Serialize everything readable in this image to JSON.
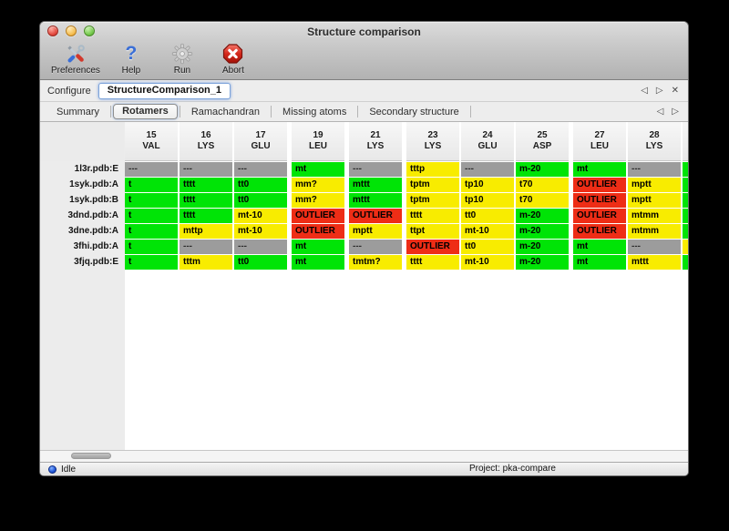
{
  "window_title": "Structure comparison",
  "traffic_lights": {
    "close": "close-button",
    "minimize": "minimize-button",
    "zoom": "zoom-button"
  },
  "toolbar": {
    "items": [
      {
        "label": "Preferences",
        "icon": "tools-icon"
      },
      {
        "label": "Help",
        "icon": "help-icon"
      },
      {
        "label": "Run",
        "icon": "gear-icon"
      },
      {
        "label": "Abort",
        "icon": "abort-icon"
      }
    ]
  },
  "configure": {
    "label": "Configure",
    "value": "StructureComparison_1",
    "nav": [
      "◁",
      "▷",
      "✕"
    ]
  },
  "tabs": {
    "items": [
      "Summary",
      "Rotamers",
      "Ramachandran",
      "Missing atoms",
      "Secondary structure"
    ],
    "selected": "Rotamers",
    "nav": [
      "◁",
      "▷"
    ]
  },
  "colors": {
    "ok": "#00e406",
    "warn": "#f8ec00",
    "outlier": "#ee2d16",
    "absent": "#9c9c9c"
  },
  "table": {
    "columns": [
      {
        "num": "15",
        "res": "VAL",
        "gap_after": false
      },
      {
        "num": "16",
        "res": "LYS",
        "gap_after": false
      },
      {
        "num": "17",
        "res": "GLU",
        "gap_after": true
      },
      {
        "num": "19",
        "res": "LEU",
        "gap_after": true
      },
      {
        "num": "21",
        "res": "LYS",
        "gap_after": true
      },
      {
        "num": "23",
        "res": "LYS",
        "gap_after": false
      },
      {
        "num": "24",
        "res": "GLU",
        "gap_after": false
      },
      {
        "num": "25",
        "res": "ASP",
        "gap_after": true
      },
      {
        "num": "27",
        "res": "LEU",
        "gap_after": false
      },
      {
        "num": "28",
        "res": "LYS",
        "gap_after": false
      }
    ],
    "rows": [
      {
        "label": "1l3r.pdb:E",
        "tail": "ok",
        "cells": [
          {
            "text": "---",
            "status": "absent"
          },
          {
            "text": "---",
            "status": "absent"
          },
          {
            "text": "---",
            "status": "absent"
          },
          {
            "text": "mt",
            "status": "ok"
          },
          {
            "text": "---",
            "status": "absent"
          },
          {
            "text": "tttp",
            "status": "warn"
          },
          {
            "text": "---",
            "status": "absent"
          },
          {
            "text": "m-20",
            "status": "ok"
          },
          {
            "text": "mt",
            "status": "ok"
          },
          {
            "text": "---",
            "status": "absent"
          }
        ]
      },
      {
        "label": "1syk.pdb:A",
        "tail": "ok",
        "cells": [
          {
            "text": "t",
            "status": "ok"
          },
          {
            "text": "tttt",
            "status": "ok"
          },
          {
            "text": "tt0",
            "status": "ok"
          },
          {
            "text": "mm?",
            "status": "warn"
          },
          {
            "text": "mttt",
            "status": "ok"
          },
          {
            "text": "tptm",
            "status": "warn"
          },
          {
            "text": "tp10",
            "status": "warn"
          },
          {
            "text": "t70",
            "status": "warn"
          },
          {
            "text": "OUTLIER",
            "status": "outlier"
          },
          {
            "text": "mptt",
            "status": "warn"
          }
        ]
      },
      {
        "label": "1syk.pdb:B",
        "tail": "ok",
        "cells": [
          {
            "text": "t",
            "status": "ok"
          },
          {
            "text": "tttt",
            "status": "ok"
          },
          {
            "text": "tt0",
            "status": "ok"
          },
          {
            "text": "mm?",
            "status": "warn"
          },
          {
            "text": "mttt",
            "status": "ok"
          },
          {
            "text": "tptm",
            "status": "warn"
          },
          {
            "text": "tp10",
            "status": "warn"
          },
          {
            "text": "t70",
            "status": "warn"
          },
          {
            "text": "OUTLIER",
            "status": "outlier"
          },
          {
            "text": "mptt",
            "status": "warn"
          }
        ]
      },
      {
        "label": "3dnd.pdb:A",
        "tail": "ok",
        "cells": [
          {
            "text": "t",
            "status": "ok"
          },
          {
            "text": "tttt",
            "status": "ok"
          },
          {
            "text": "mt-10",
            "status": "warn"
          },
          {
            "text": "OUTLIER",
            "status": "outlier"
          },
          {
            "text": "OUTLIER",
            "status": "outlier"
          },
          {
            "text": "tttt",
            "status": "warn"
          },
          {
            "text": "tt0",
            "status": "warn"
          },
          {
            "text": "m-20",
            "status": "ok"
          },
          {
            "text": "OUTLIER",
            "status": "outlier"
          },
          {
            "text": "mtmm",
            "status": "warn"
          }
        ]
      },
      {
        "label": "3dne.pdb:A",
        "tail": "ok",
        "cells": [
          {
            "text": "t",
            "status": "ok"
          },
          {
            "text": "mttp",
            "status": "warn"
          },
          {
            "text": "mt-10",
            "status": "warn"
          },
          {
            "text": "OUTLIER",
            "status": "outlier"
          },
          {
            "text": "mptt",
            "status": "warn"
          },
          {
            "text": "ttpt",
            "status": "warn"
          },
          {
            "text": "mt-10",
            "status": "warn"
          },
          {
            "text": "m-20",
            "status": "ok"
          },
          {
            "text": "OUTLIER",
            "status": "outlier"
          },
          {
            "text": "mtmm",
            "status": "warn"
          }
        ]
      },
      {
        "label": "3fhi.pdb:A",
        "tail": "warn",
        "cells": [
          {
            "text": "t",
            "status": "ok"
          },
          {
            "text": "---",
            "status": "absent"
          },
          {
            "text": "---",
            "status": "absent"
          },
          {
            "text": "mt",
            "status": "ok"
          },
          {
            "text": "---",
            "status": "absent"
          },
          {
            "text": "OUTLIER",
            "status": "outlier"
          },
          {
            "text": "tt0",
            "status": "warn"
          },
          {
            "text": "m-20",
            "status": "ok"
          },
          {
            "text": "mt",
            "status": "ok"
          },
          {
            "text": "---",
            "status": "absent"
          }
        ]
      },
      {
        "label": "3fjq.pdb:E",
        "tail": "ok",
        "cells": [
          {
            "text": "t",
            "status": "ok"
          },
          {
            "text": "tttm",
            "status": "warn"
          },
          {
            "text": "tt0",
            "status": "ok"
          },
          {
            "text": "mt",
            "status": "ok"
          },
          {
            "text": "tmtm?",
            "status": "warn"
          },
          {
            "text": "tttt",
            "status": "warn"
          },
          {
            "text": "mt-10",
            "status": "warn"
          },
          {
            "text": "m-20",
            "status": "ok"
          },
          {
            "text": "mt",
            "status": "ok"
          },
          {
            "text": "mttt",
            "status": "warn"
          }
        ]
      }
    ]
  },
  "statusbar": {
    "state": "Idle",
    "project": "Project: pka-compare"
  }
}
